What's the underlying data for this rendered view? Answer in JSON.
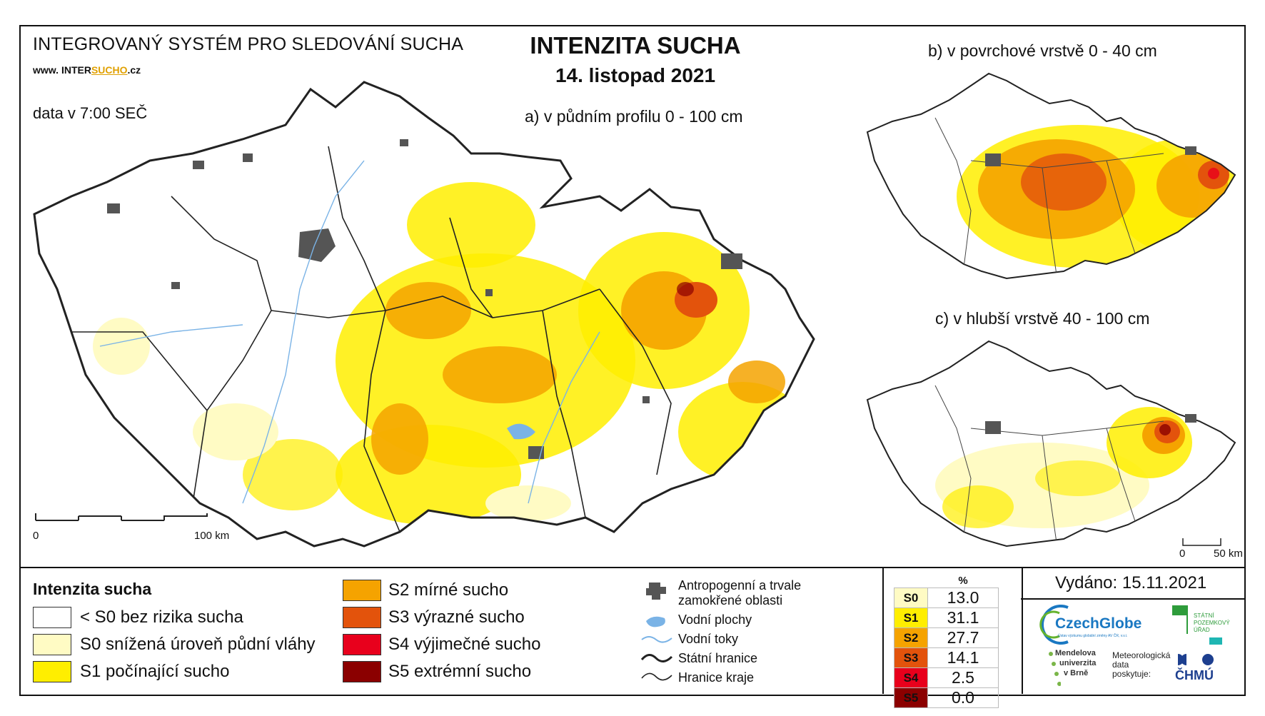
{
  "header": {
    "system_title": "INTEGROVANÝ SYSTÉM PRO SLEDOVÁNÍ SUCHA",
    "website_prefix": "www.",
    "website_inter": "INTER",
    "website_sucho": "SUCHO",
    "website_suffix": ".cz",
    "data_time": "data v 7:00 SEČ",
    "title": "INTENZITA SUCHA",
    "date": "14. listopad 2021"
  },
  "maps": {
    "a": {
      "caption": "a) v půdním profilu 0 - 100 cm",
      "scale_start": "0",
      "scale_end": "100 km"
    },
    "b": {
      "caption": "b) v povrchové vrstvě 0 - 40 cm"
    },
    "c": {
      "caption": "c) v hlubší vrstvě 40 - 100 cm",
      "scale_start": "0",
      "scale_end": "50 km"
    }
  },
  "legend": {
    "title": "Intenzita sucha",
    "classes": [
      {
        "label": "< S0 bez rizika sucha",
        "color": "#ffffff"
      },
      {
        "label": "S0 snížená úroveň půdní vláhy",
        "color": "#fffbc4"
      },
      {
        "label": "S1 počínající sucho",
        "color": "#ffee00"
      },
      {
        "label": "S2 mírné sucho",
        "color": "#f5a300"
      },
      {
        "label": "S3 výrazné sucho",
        "color": "#e3530c"
      },
      {
        "label": "S4 výjimečné sucho",
        "color": "#e8001c"
      },
      {
        "label": "S5 extrémní sucho",
        "color": "#8b0000"
      }
    ],
    "symbols": [
      {
        "label_line1": "Antropogenní a trvale",
        "label_line2": "zamokřené oblasti",
        "icon": "urban-area-icon"
      },
      {
        "label": "Vodní plochy",
        "icon": "water-body-icon"
      },
      {
        "label": "Vodní toky",
        "icon": "river-icon"
      },
      {
        "label": "Státní hranice",
        "icon": "state-border-icon"
      },
      {
        "label": "Hranice kraje",
        "icon": "region-border-icon"
      }
    ]
  },
  "stats": {
    "header": "%",
    "rows": [
      {
        "code": "S0",
        "value": "13.0",
        "color": "#fffbc4"
      },
      {
        "code": "S1",
        "value": "31.1",
        "color": "#ffee00"
      },
      {
        "code": "S2",
        "value": "27.7",
        "color": "#f5a300"
      },
      {
        "code": "S3",
        "value": "14.1",
        "color": "#e3530c"
      },
      {
        "code": "S4",
        "value": "2.5",
        "color": "#e8001c"
      },
      {
        "code": "S5",
        "value": "0.0",
        "color": "#8b0000"
      }
    ]
  },
  "footer": {
    "issued": "Vydáno: 15.11.2021",
    "czechglobe": "CzechGlobe",
    "czechglobe_sub": "Ústav výzkumu globální změny AV ČR, v.v.i.",
    "spu_line1": "STÁTNÍ",
    "spu_line2": "POZEMKOVÝ",
    "spu_line3": "ÚŘAD",
    "mendel_line1": "Mendelova",
    "mendel_line2": "univerzita",
    "mendel_line3": "v Brně",
    "meteo_line1": "Meteorologická",
    "meteo_line2": "data",
    "meteo_line3": "poskytuje:",
    "chmu": "ČHMÚ"
  }
}
